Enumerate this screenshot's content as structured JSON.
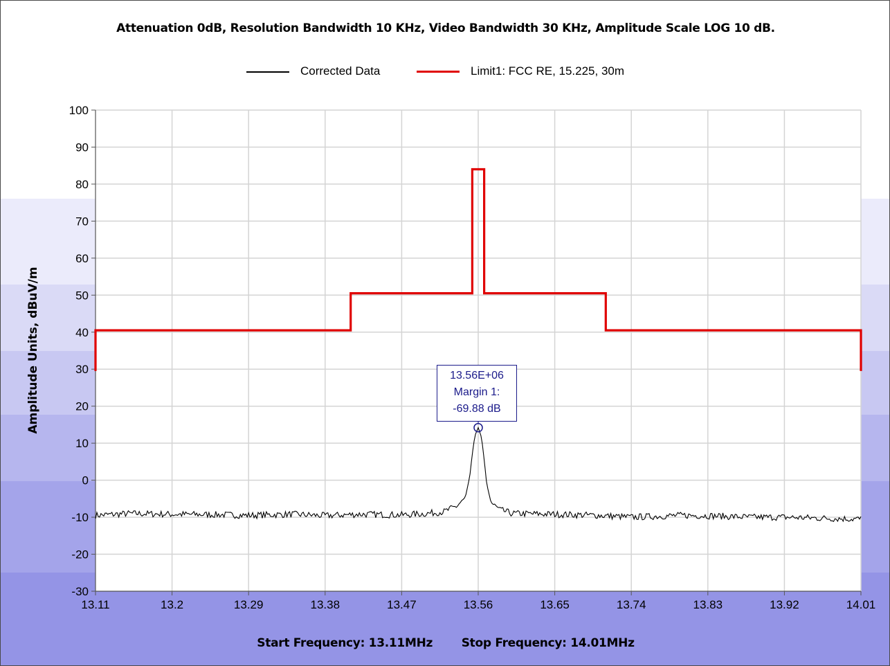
{
  "chart_data": {
    "type": "line",
    "title": "Attenuation 0dB, Resolution Bandwidth 10 KHz, Video Bandwidth 30 KHz, Amplitude Scale LOG 10 dB.",
    "ylabel": "Amplitude Units, dBuV/m",
    "xlabel": "",
    "footer": {
      "start": "Start Frequency: 13.11MHz",
      "stop": "Stop Frequency: 14.01MHz"
    },
    "xlim": [
      13.11,
      14.01
    ],
    "ylim": [
      -30,
      100
    ],
    "x_ticks": [
      13.11,
      13.2,
      13.29,
      13.38,
      13.47,
      13.56,
      13.65,
      13.74,
      13.83,
      13.92,
      14.01
    ],
    "x_tick_labels": [
      "13.11",
      "13.2",
      "13.29",
      "13.38",
      "13.47",
      "13.56",
      "13.65",
      "13.74",
      "13.83",
      "13.92",
      "14.01"
    ],
    "y_ticks": [
      -30,
      -20,
      -10,
      0,
      10,
      20,
      30,
      40,
      50,
      60,
      70,
      80,
      90,
      100
    ],
    "y_tick_labels": [
      "-30",
      "-20",
      "-10",
      "0",
      "10",
      "20",
      "30",
      "40",
      "50",
      "60",
      "70",
      "80",
      "90",
      "100"
    ],
    "grid": true,
    "legend_position": "top-center",
    "series": [
      {
        "name": "Corrected Data",
        "color": "#000000",
        "x": [
          13.11,
          13.15,
          13.2,
          13.25,
          13.29,
          13.34,
          13.38,
          13.42,
          13.47,
          13.5,
          13.52,
          13.535,
          13.545,
          13.55,
          13.553,
          13.556,
          13.56,
          13.564,
          13.567,
          13.57,
          13.575,
          13.585,
          13.6,
          13.65,
          13.7,
          13.74,
          13.8,
          13.83,
          13.88,
          13.92,
          13.97,
          14.01
        ],
        "y": [
          -9.5,
          -9.0,
          -9.2,
          -9.3,
          -9.5,
          -9.2,
          -9.6,
          -9.2,
          -9.4,
          -9.0,
          -8.5,
          -7.0,
          -4.5,
          1.0,
          7.0,
          12.0,
          14.2,
          11.5,
          5.5,
          -1.0,
          -6.0,
          -8.0,
          -9.0,
          -9.2,
          -9.5,
          -10.0,
          -9.5,
          -9.6,
          -10.0,
          -10.0,
          -10.3,
          -10.5
        ]
      },
      {
        "name": "Limit1: FCC RE, 15.225, 30m",
        "color": "#e00000",
        "x": [
          13.11,
          13.11,
          13.41,
          13.41,
          13.553,
          13.553,
          13.567,
          13.567,
          13.71,
          13.71,
          14.01,
          14.01
        ],
        "y": [
          29.5,
          40.5,
          40.5,
          50.5,
          50.5,
          84.0,
          84.0,
          50.5,
          50.5,
          40.5,
          40.5,
          29.5
        ]
      }
    ],
    "annotation": {
      "x": 13.56,
      "y": 14.2,
      "lines": [
        "13.56E+06",
        "Margin 1:",
        "-69.88 dB"
      ]
    }
  }
}
